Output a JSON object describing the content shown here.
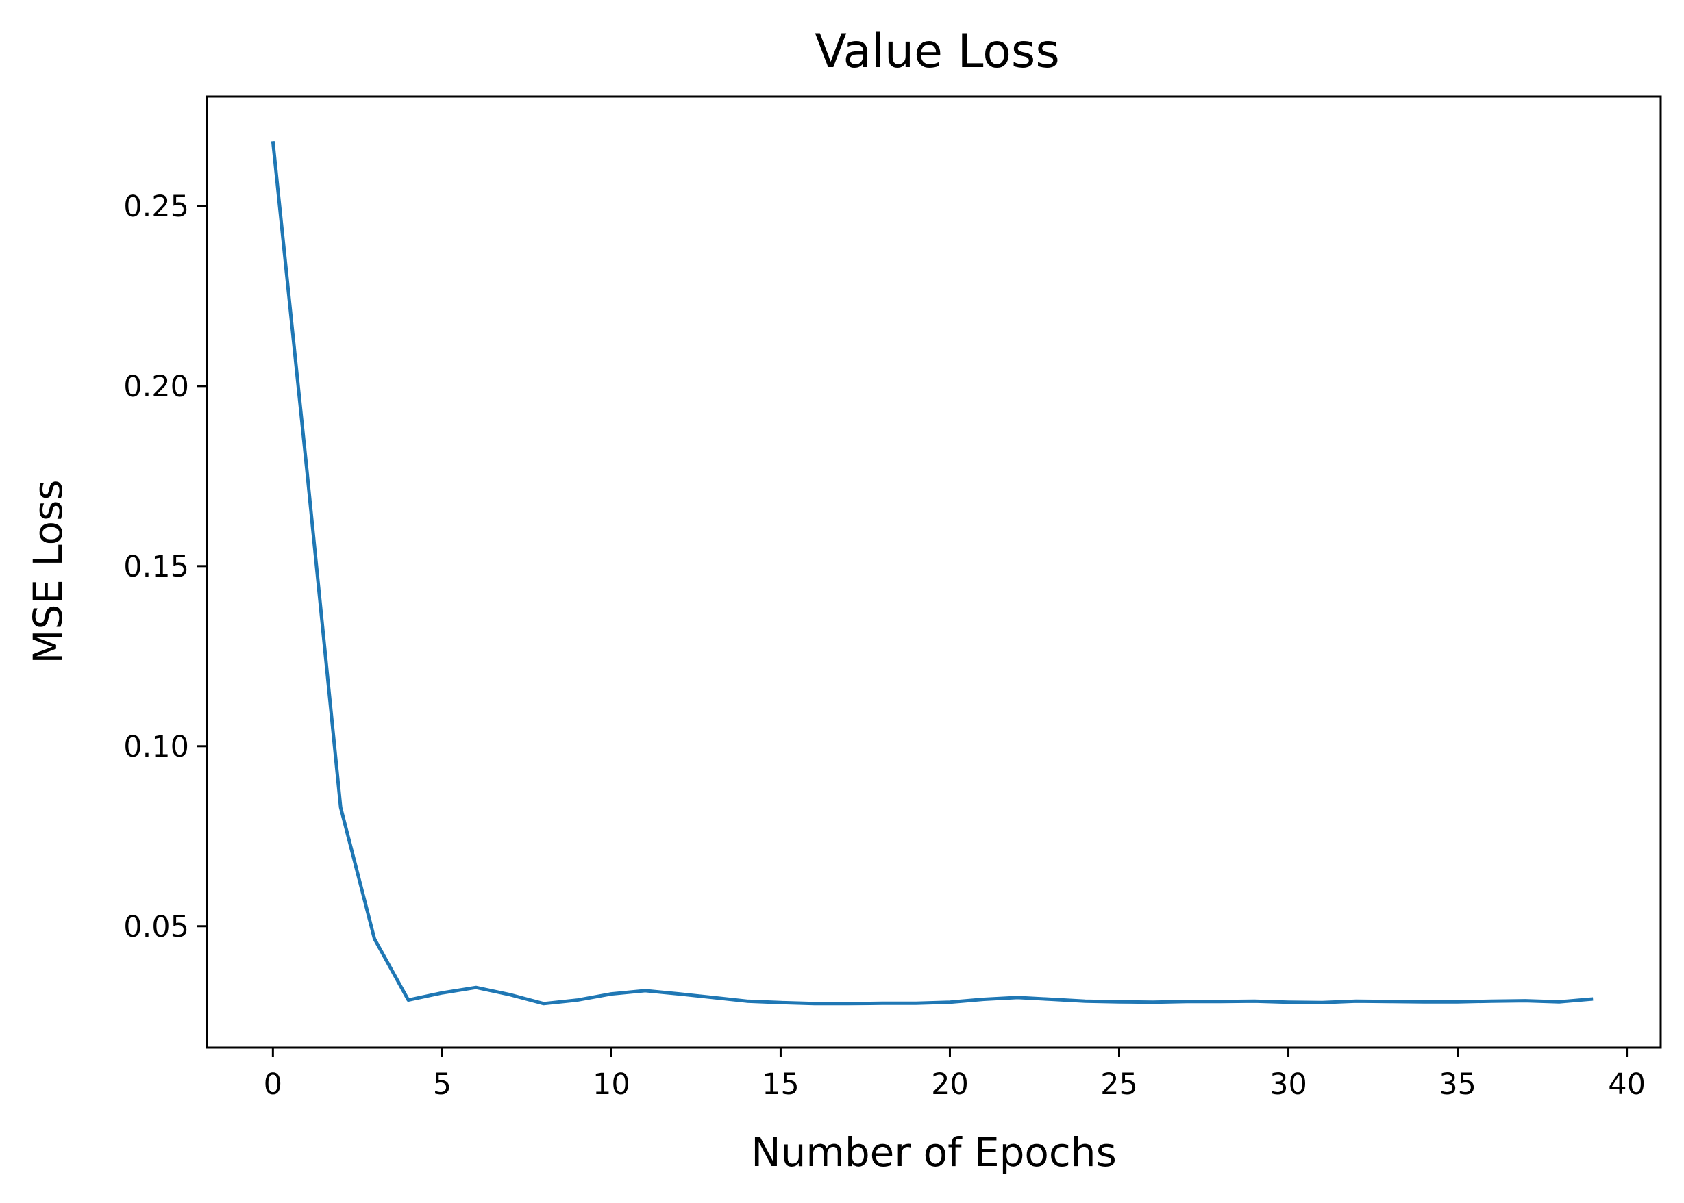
{
  "chart_data": {
    "type": "line",
    "title": "Value Loss",
    "xlabel": "Number of Epochs",
    "ylabel": "MSE Loss",
    "xlim": [
      -1.95,
      41.0
    ],
    "ylim": [
      0.0163,
      0.2804
    ],
    "xticks": [
      0,
      5,
      10,
      15,
      20,
      25,
      30,
      35,
      40
    ],
    "xtick_labels": [
      "0",
      "5",
      "10",
      "15",
      "20",
      "25",
      "30",
      "35",
      "40"
    ],
    "yticks": [
      0.05,
      0.1,
      0.15,
      0.2,
      0.25
    ],
    "ytick_labels": [
      "0.05",
      "0.10",
      "0.15",
      "0.20",
      "0.25"
    ],
    "grid": false,
    "legend": "none",
    "series": [
      {
        "color": "#1f77b4",
        "x": [
          0,
          1,
          2,
          3,
          4,
          5,
          6,
          7,
          8,
          9,
          10,
          11,
          12,
          13,
          14,
          15,
          16,
          17,
          18,
          19,
          20,
          21,
          22,
          23,
          24,
          25,
          26,
          27,
          28,
          29,
          30,
          31,
          32,
          33,
          34,
          35,
          36,
          37,
          38,
          39
        ],
        "values": [
          0.268,
          0.177,
          0.083,
          0.0465,
          0.0295,
          0.0315,
          0.033,
          0.031,
          0.0285,
          0.0295,
          0.0312,
          0.0321,
          0.0312,
          0.0302,
          0.0292,
          0.0288,
          0.0285,
          0.0285,
          0.0286,
          0.0286,
          0.0289,
          0.0297,
          0.0302,
          0.0297,
          0.0292,
          0.029,
          0.0289,
          0.0291,
          0.0291,
          0.0292,
          0.0289,
          0.0288,
          0.0292,
          0.0291,
          0.029,
          0.029,
          0.0292,
          0.0293,
          0.029,
          0.0298
        ]
      }
    ]
  }
}
